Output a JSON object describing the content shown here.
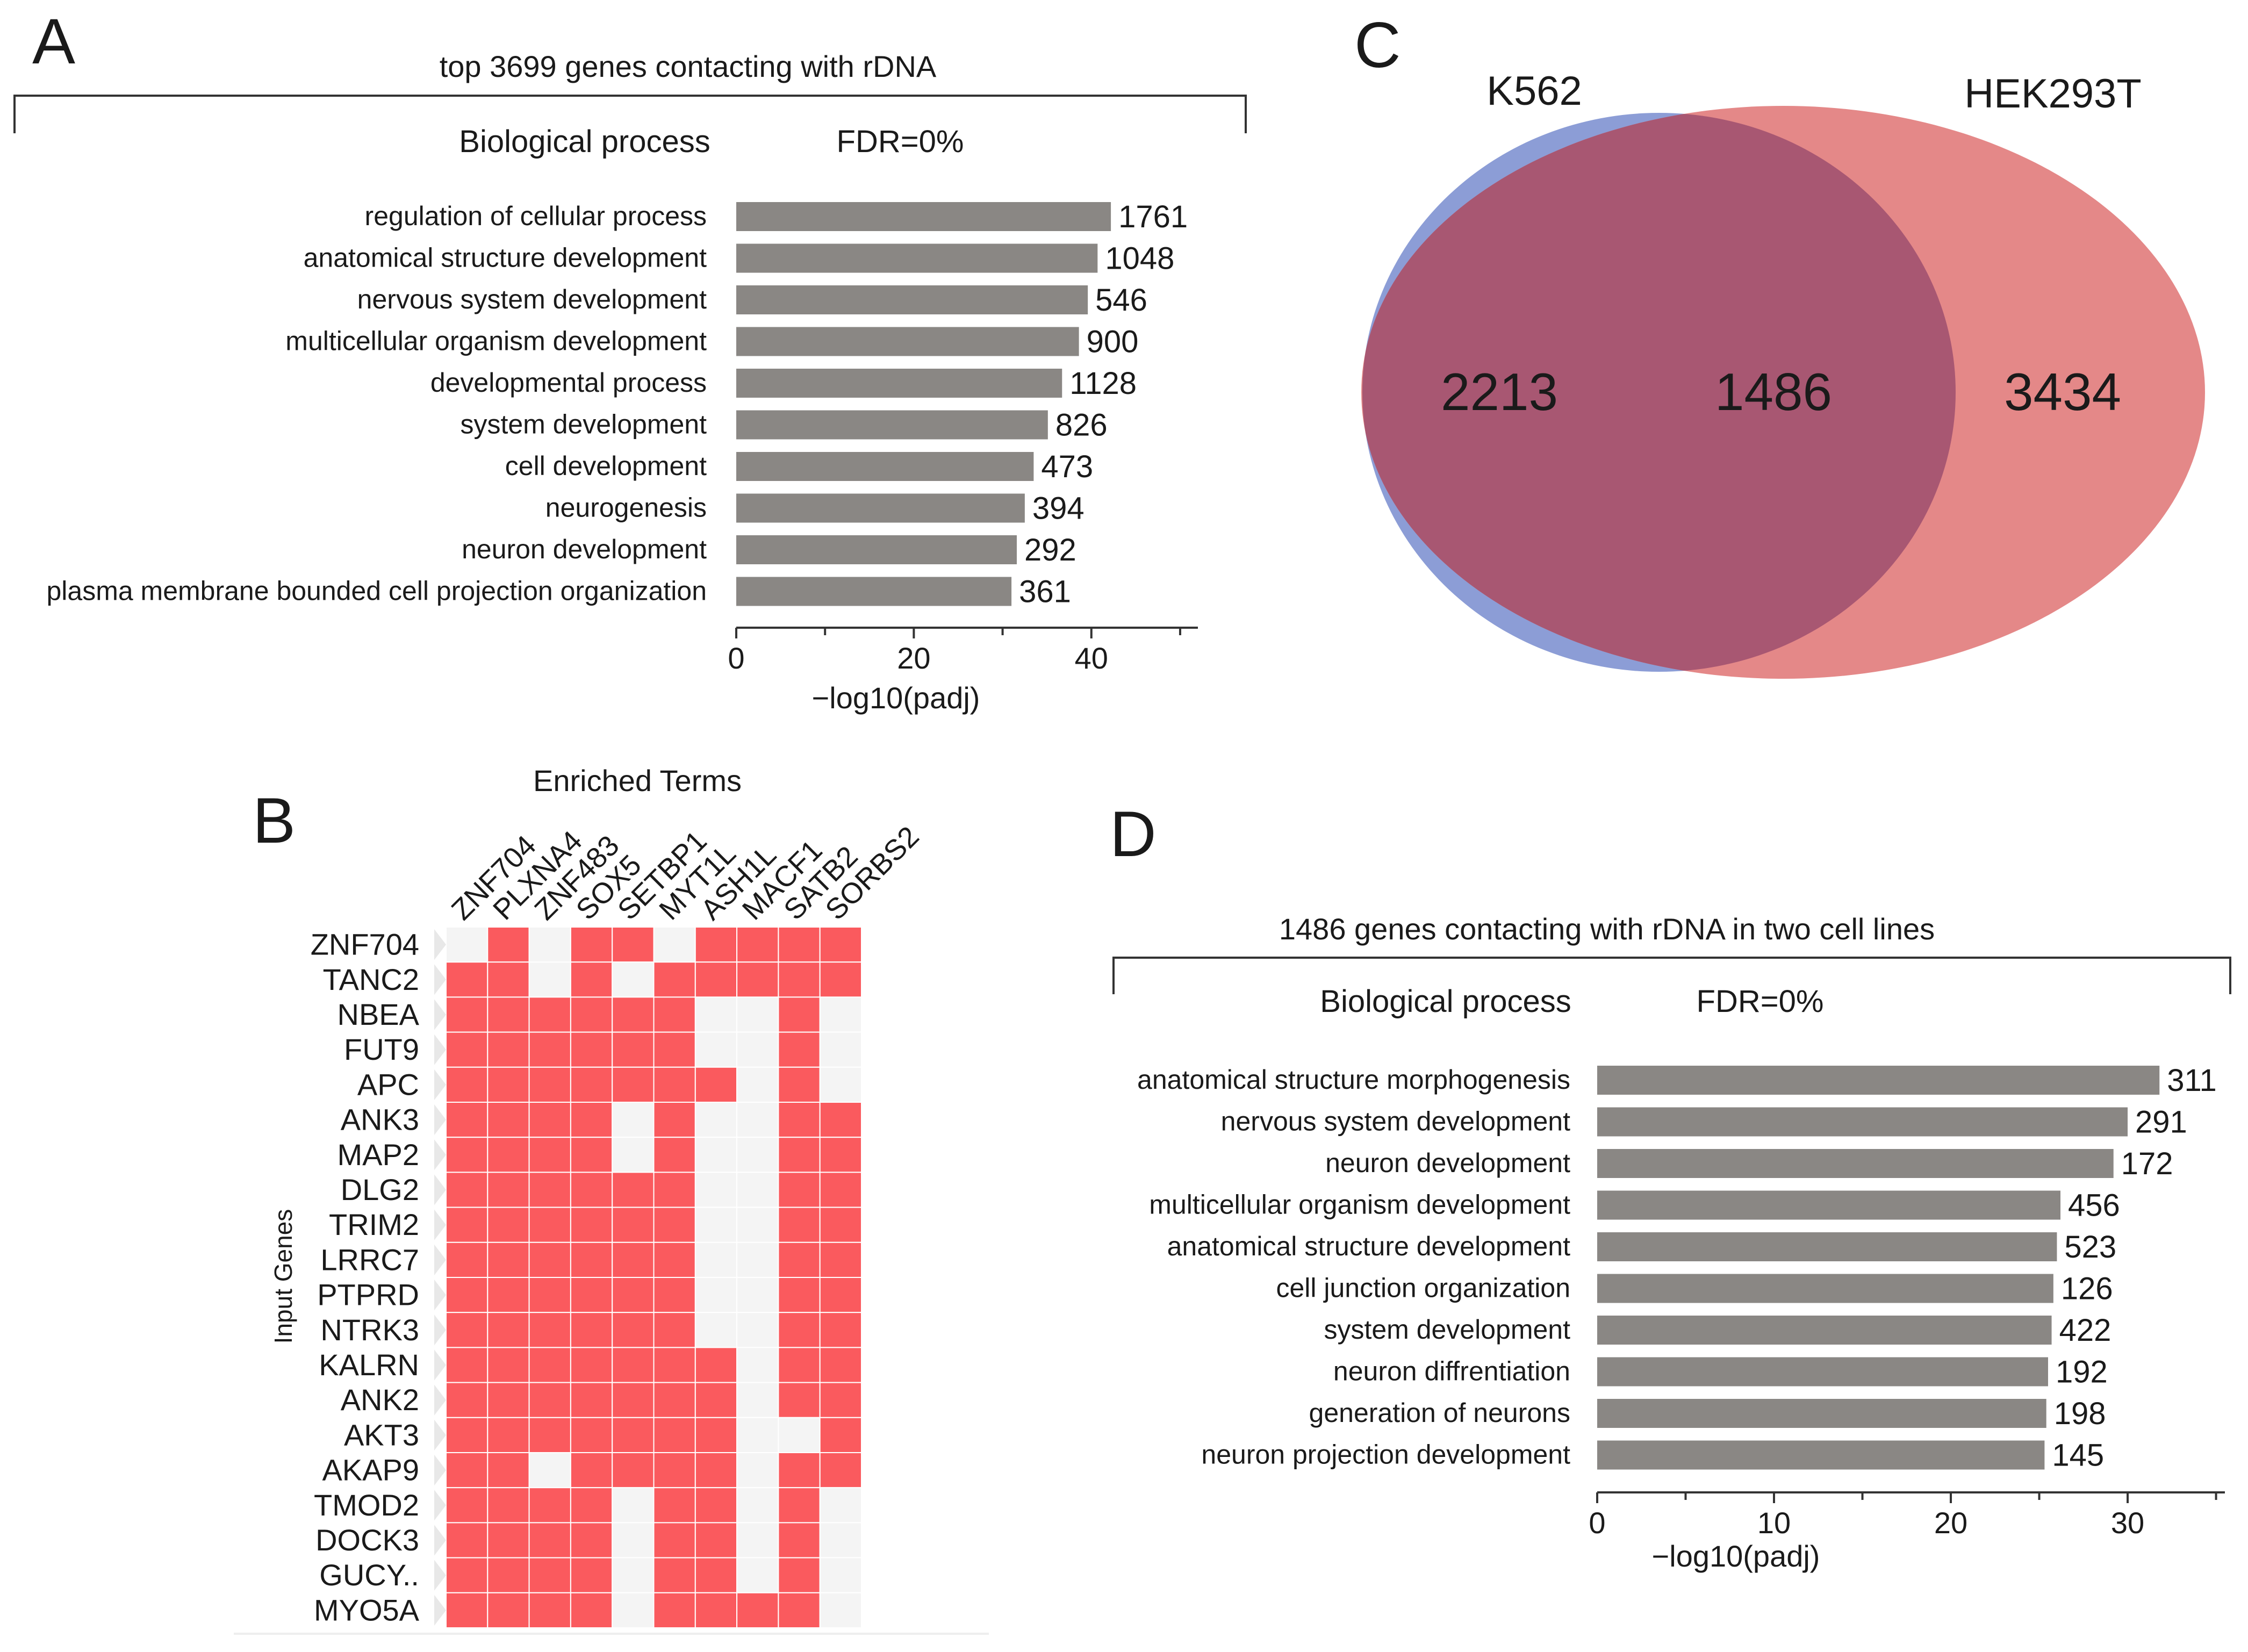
{
  "panels": {
    "a": {
      "letter": "A",
      "title": "top 3699 genes contacting with rDNA",
      "header_left": "Biological process",
      "header_right": "FDR=0%",
      "xlabel": "−log10(padj)"
    },
    "b": {
      "letter": "B",
      "title": "Enriched Terms",
      "ylabel": "Input Genes"
    },
    "c": {
      "letter": "C",
      "left_label": "K562",
      "right_label": "HEK293T",
      "left_only": "2213",
      "overlap": "1486",
      "right_only": "3434"
    },
    "d": {
      "letter": "D",
      "title": "1486 genes contacting with rDNA in two cell lines",
      "header_left": "Biological process",
      "header_right": "FDR=0%",
      "xlabel": "−log10(padj)"
    }
  },
  "chart_data": [
    {
      "id": "A",
      "type": "bar",
      "orientation": "horizontal",
      "title": "top 3699 genes contacting with rDNA",
      "xlabel": "−log10(padj)",
      "categories": [
        "regulation of cellular process",
        "anatomical structure development",
        "nervous system development",
        "multicellular organism development",
        "developmental process",
        "system development",
        "cell development",
        "neurogenesis",
        "neuron development",
        "plasma membrane bounded cell projection organization"
      ],
      "values": [
        42.2,
        40.7,
        39.6,
        38.6,
        36.7,
        35.1,
        33.5,
        32.5,
        31.6,
        31.0
      ],
      "counts": [
        "1761",
        "1048",
        "546",
        "900",
        "1128",
        "826",
        "473",
        "394",
        "292",
        "361"
      ],
      "xlim": [
        0,
        52
      ],
      "ticks": [
        0,
        20,
        40
      ],
      "minor_ticks": [
        10,
        30,
        50
      ],
      "bar_color": "#8a8784"
    },
    {
      "id": "B",
      "type": "heatmap",
      "title": "Enriched Terms",
      "ylabel": "Input Genes",
      "columns": [
        "ZNF704",
        "PLXNA4",
        "ZNF483",
        "SOX5",
        "SETBP1",
        "MYT1L",
        "ASH1L",
        "MACF1",
        "SATB2",
        "SORBS2"
      ],
      "rows": [
        "ZNF704",
        "TANC2",
        "NBEA",
        "FUT9",
        "APC",
        "ANK3",
        "MAP2",
        "DLG2",
        "TRIM2",
        "LRRC7",
        "PTPRD",
        "NTRK3",
        "KALRN",
        "ANK2",
        "AKT3",
        "AKAP9",
        "TMOD2",
        "DOCK3",
        "GUCY..",
        "MYO5A"
      ],
      "matrix": [
        [
          0,
          1,
          0,
          1,
          1,
          0,
          1,
          1,
          1,
          1
        ],
        [
          1,
          1,
          0,
          1,
          0,
          1,
          1,
          1,
          1,
          1
        ],
        [
          1,
          1,
          1,
          1,
          1,
          1,
          0,
          0,
          1,
          0
        ],
        [
          1,
          1,
          1,
          1,
          1,
          1,
          0,
          0,
          1,
          0
        ],
        [
          1,
          1,
          1,
          1,
          1,
          1,
          1,
          0,
          1,
          0
        ],
        [
          1,
          1,
          1,
          1,
          0,
          1,
          0,
          0,
          1,
          1
        ],
        [
          1,
          1,
          1,
          1,
          0,
          1,
          0,
          0,
          1,
          1
        ],
        [
          1,
          1,
          1,
          1,
          1,
          1,
          0,
          0,
          1,
          1
        ],
        [
          1,
          1,
          1,
          1,
          1,
          1,
          0,
          0,
          1,
          1
        ],
        [
          1,
          1,
          1,
          1,
          1,
          1,
          0,
          0,
          1,
          1
        ],
        [
          1,
          1,
          1,
          1,
          1,
          1,
          0,
          0,
          1,
          1
        ],
        [
          1,
          1,
          1,
          1,
          1,
          1,
          0,
          0,
          1,
          1
        ],
        [
          1,
          1,
          1,
          1,
          1,
          1,
          1,
          0,
          1,
          1
        ],
        [
          1,
          1,
          1,
          1,
          1,
          1,
          1,
          0,
          1,
          1
        ],
        [
          1,
          1,
          1,
          1,
          1,
          1,
          1,
          0,
          0,
          1
        ],
        [
          1,
          1,
          0,
          1,
          1,
          1,
          1,
          0,
          1,
          1
        ],
        [
          1,
          1,
          1,
          1,
          0,
          1,
          1,
          0,
          1,
          0
        ],
        [
          1,
          1,
          1,
          1,
          0,
          1,
          1,
          0,
          1,
          0
        ],
        [
          1,
          1,
          1,
          1,
          0,
          1,
          1,
          0,
          1,
          0
        ],
        [
          1,
          1,
          1,
          1,
          0,
          1,
          1,
          1,
          1,
          0
        ]
      ],
      "on_color": "#fa5a5e",
      "off_color": "#f4f4f4"
    },
    {
      "id": "C",
      "type": "venn",
      "sets": [
        "K562",
        "HEK293T"
      ],
      "left_only": 2213,
      "overlap": 1486,
      "right_only": 3434,
      "colors": {
        "left": "#8c9dd6",
        "right": "#e48888",
        "overlap": "#a85772"
      }
    },
    {
      "id": "D",
      "type": "bar",
      "orientation": "horizontal",
      "title": "1486 genes contacting with rDNA in two cell lines",
      "xlabel": "−log10(padj)",
      "categories": [
        "anatomical structure morphogenesis",
        "nervous system development",
        "neuron development",
        "multicellular organism development",
        "anatomical structure development",
        "cell junction organization",
        "system development",
        "neuron diffrentiation",
        "generation of neurons",
        "neuron projection development"
      ],
      "values": [
        31.8,
        30.0,
        29.2,
        26.2,
        26.0,
        25.8,
        25.7,
        25.5,
        25.4,
        25.3
      ],
      "counts": [
        "311",
        "291",
        "172",
        "456",
        "523",
        "126",
        "422",
        "192",
        "198",
        "145"
      ],
      "xlim": [
        0,
        35.5
      ],
      "ticks": [
        0,
        10,
        20,
        30
      ],
      "minor_ticks": [
        5,
        15,
        25,
        35
      ],
      "bar_color": "#8a8784"
    }
  ]
}
